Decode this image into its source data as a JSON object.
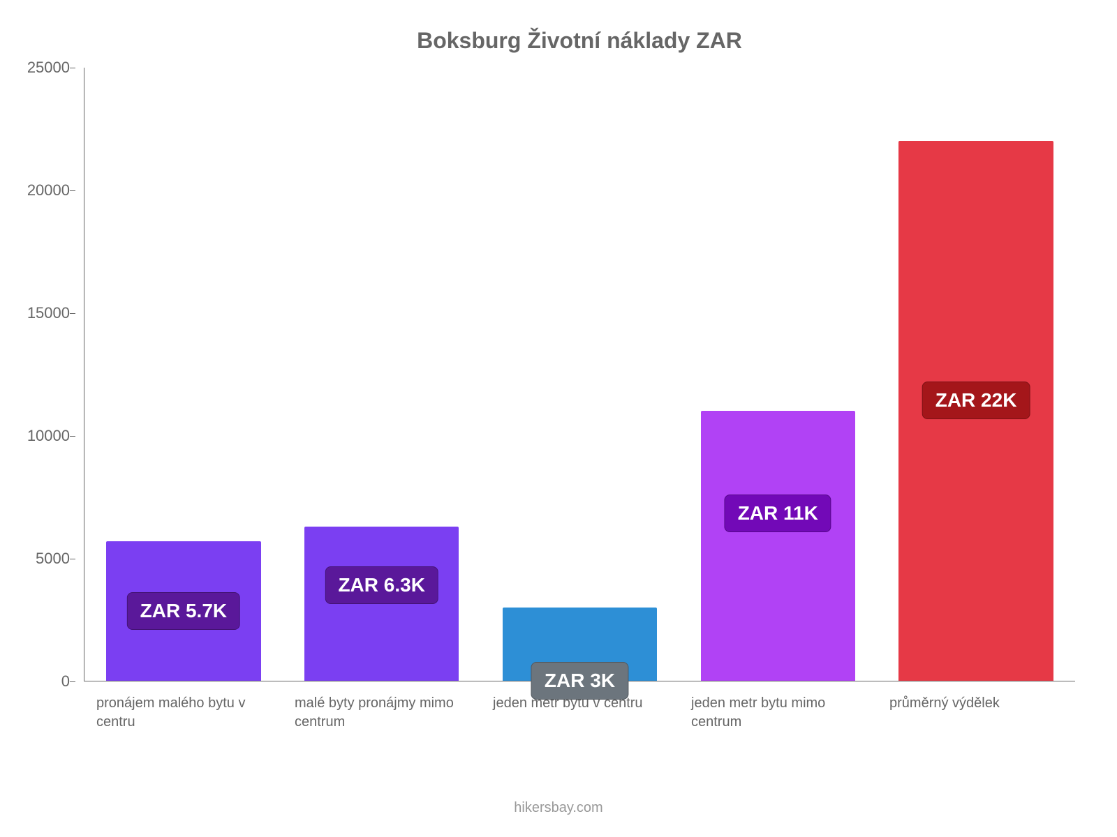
{
  "chart": {
    "type": "bar",
    "title": "Boksburg Životní náklady ZAR",
    "title_fontsize": 32,
    "title_color": "#666666",
    "background_color": "#ffffff",
    "axis_color": "#666666",
    "text_color": "#666666",
    "ylim": [
      0,
      25000
    ],
    "yticks": [
      0,
      5000,
      10000,
      15000,
      20000,
      25000
    ],
    "ytick_labels": [
      "0",
      "5000",
      "10000",
      "15000",
      "20000",
      "25000"
    ],
    "label_fontsize": 22,
    "xlabel_fontsize": 20,
    "value_label_fontsize": 28,
    "bar_width": 0.78,
    "bars": [
      {
        "category": "pronájem malého bytu v centru",
        "value": 5700,
        "value_label": "ZAR 5.7K",
        "bar_color": "#7b3ff2",
        "label_bg": "#5a189a",
        "label_y_offset_pct": 50
      },
      {
        "category": "malé byty pronájmy mimo centrum",
        "value": 6300,
        "value_label": "ZAR 6.3K",
        "bar_color": "#7b3ff2",
        "label_bg": "#5a189a",
        "label_y_offset_pct": 38
      },
      {
        "category": "jeden metr bytu v centru",
        "value": 3000,
        "value_label": "ZAR 3K",
        "bar_color": "#2d8fd6",
        "label_bg": "#6c757d",
        "label_y_offset_pct": 100
      },
      {
        "category": "jeden metr bytu mimo centrum",
        "value": 11000,
        "value_label": "ZAR 11K",
        "bar_color": "#b142f5",
        "label_bg": "#7209b7",
        "label_y_offset_pct": 38
      },
      {
        "category": "průměrný výdělek",
        "value": 22000,
        "value_label": "ZAR 22K",
        "bar_color": "#e63946",
        "label_bg": "#a4161a",
        "label_y_offset_pct": 48
      }
    ],
    "footer": "hikersbay.com",
    "footer_color": "#999999"
  }
}
